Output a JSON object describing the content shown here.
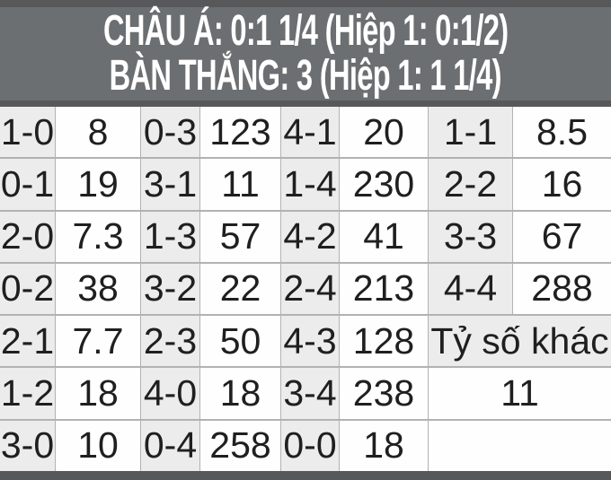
{
  "header": {
    "line1": "CHÂU Á: 0:1 1/4 (Hiệp 1: 0:1/2)",
    "line2": "BÀN THẮNG: 3 (Hiệp 1: 1 1/4)"
  },
  "colors": {
    "strip": "#57585a",
    "header_bg": "#6c6f71",
    "header_text": "#ffffff",
    "score_bg": "#ececec",
    "odds_bg": "#fefefe",
    "grid_line": "#b2b2b2",
    "cell_text": "#1f1f1f"
  },
  "chart_data": {
    "type": "table",
    "title": "CHÂU Á: 0:1 1/4 (Hiệp 1: 0:1/2) — BÀN THẮNG: 3 (Hiệp 1: 1 1/4)",
    "columns_pattern": [
      "score",
      "odds",
      "score",
      "odds",
      "score",
      "odds",
      "score",
      "odds"
    ],
    "rows": [
      {
        "cells": [
          [
            "1-0",
            "8"
          ],
          [
            "0-3",
            "123"
          ],
          [
            "4-1",
            "20"
          ],
          [
            "1-1",
            "8.5"
          ]
        ]
      },
      {
        "cells": [
          [
            "0-1",
            "19"
          ],
          [
            "3-1",
            "11"
          ],
          [
            "1-4",
            "230"
          ],
          [
            "2-2",
            "16"
          ]
        ]
      },
      {
        "cells": [
          [
            "2-0",
            "7.3"
          ],
          [
            "1-3",
            "57"
          ],
          [
            "4-2",
            "41"
          ],
          [
            "3-3",
            "67"
          ]
        ]
      },
      {
        "cells": [
          [
            "0-2",
            "38"
          ],
          [
            "3-2",
            "22"
          ],
          [
            "2-4",
            "213"
          ],
          [
            "4-4",
            "288"
          ]
        ]
      },
      {
        "cells": [
          [
            "2-1",
            "7.7"
          ],
          [
            "2-3",
            "50"
          ],
          [
            "4-3",
            "128"
          ]
        ],
        "merged": {
          "text": "Tỷ số khác",
          "style": "score"
        }
      },
      {
        "cells": [
          [
            "1-2",
            "18"
          ],
          [
            "4-0",
            "18"
          ],
          [
            "3-4",
            "238"
          ]
        ],
        "merged": {
          "text": "11",
          "style": "odds"
        }
      },
      {
        "cells": [
          [
            "3-0",
            "10"
          ],
          [
            "0-4",
            "258"
          ],
          [
            "0-0",
            "18"
          ]
        ],
        "merged": {
          "text": "",
          "style": "odds"
        }
      }
    ]
  }
}
